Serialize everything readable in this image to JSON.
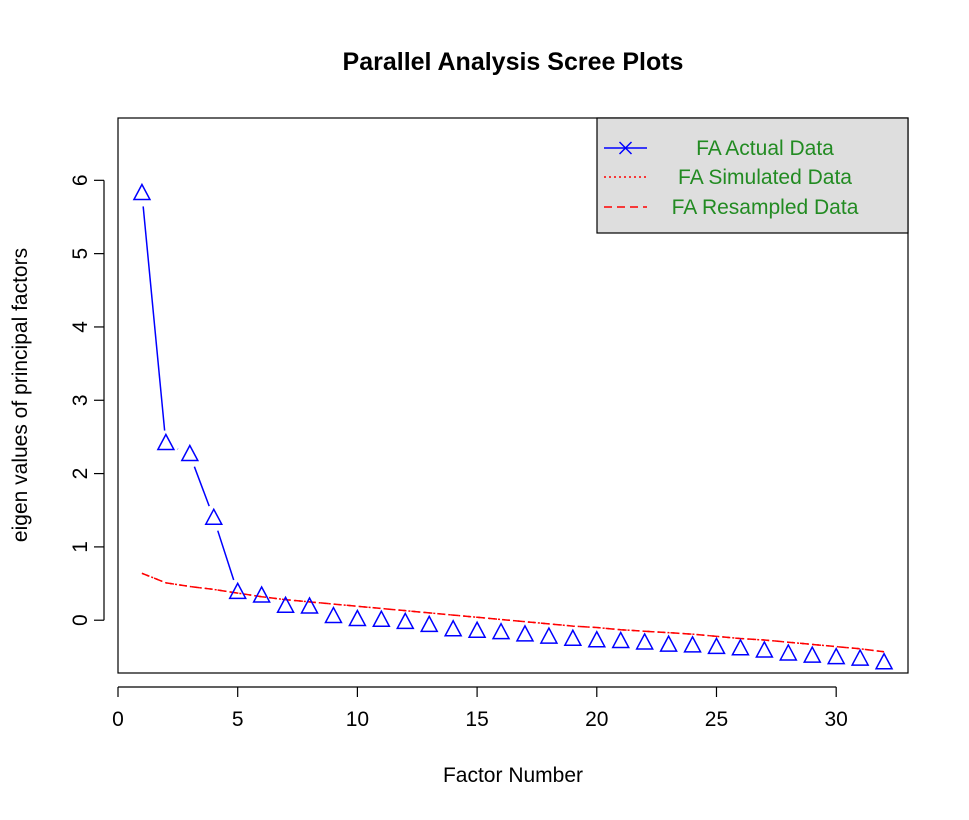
{
  "chart_data": {
    "type": "line",
    "title": "Parallel Analysis Scree Plots",
    "xlabel": "Factor Number",
    "ylabel": "eigen values of principal factors",
    "xlim": [
      0,
      33
    ],
    "ylim": [
      -0.72,
      6.85
    ],
    "xticks": [
      0,
      5,
      10,
      15,
      20,
      25,
      30
    ],
    "yticks": [
      0,
      1,
      2,
      3,
      4,
      5,
      6
    ],
    "legend_position": "top-right",
    "series": [
      {
        "name": "FA  Actual Data",
        "color": "#0000ff",
        "style": "solid-with-triangles",
        "x": [
          1,
          2,
          3,
          4,
          5,
          6,
          7,
          8,
          9,
          10,
          11,
          12,
          13,
          14,
          15,
          16,
          17,
          18,
          19,
          20,
          21,
          22,
          23,
          24,
          25,
          26,
          27,
          28,
          29,
          30,
          31,
          32
        ],
        "values": [
          5.82,
          2.41,
          2.26,
          1.39,
          0.38,
          0.33,
          0.19,
          0.18,
          0.05,
          0.01,
          0.0,
          -0.03,
          -0.07,
          -0.13,
          -0.15,
          -0.17,
          -0.2,
          -0.23,
          -0.26,
          -0.28,
          -0.29,
          -0.31,
          -0.34,
          -0.35,
          -0.37,
          -0.39,
          -0.42,
          -0.46,
          -0.49,
          -0.51,
          -0.53,
          -0.58
        ]
      },
      {
        "name": "FA  Simulated Data",
        "color": "#ff0000",
        "style": "dotted",
        "x": [
          1,
          2,
          3,
          4,
          5,
          6,
          7,
          8,
          9,
          10,
          11,
          12,
          13,
          14,
          15,
          16,
          17,
          18,
          19,
          20,
          21,
          22,
          23,
          24,
          25,
          26,
          27,
          28,
          29,
          30,
          31,
          32
        ],
        "values": [
          0.64,
          0.51,
          0.46,
          0.42,
          0.37,
          0.32,
          0.28,
          0.25,
          0.22,
          0.19,
          0.16,
          0.13,
          0.1,
          0.07,
          0.04,
          0.01,
          -0.02,
          -0.05,
          -0.08,
          -0.1,
          -0.13,
          -0.15,
          -0.17,
          -0.19,
          -0.22,
          -0.25,
          -0.27,
          -0.3,
          -0.33,
          -0.36,
          -0.39,
          -0.43
        ]
      },
      {
        "name": "FA  Resampled Data",
        "color": "#ff0000",
        "style": "dashed",
        "x": [
          1,
          2,
          3,
          4,
          5,
          6,
          7,
          8,
          9,
          10,
          11,
          12,
          13,
          14,
          15,
          16,
          17,
          18,
          19,
          20,
          21,
          22,
          23,
          24,
          25,
          26,
          27,
          28,
          29,
          30,
          31,
          32
        ],
        "values": [
          0.64,
          0.51,
          0.46,
          0.42,
          0.37,
          0.32,
          0.28,
          0.25,
          0.22,
          0.19,
          0.16,
          0.13,
          0.1,
          0.07,
          0.04,
          0.01,
          -0.02,
          -0.05,
          -0.08,
          -0.1,
          -0.13,
          -0.15,
          -0.17,
          -0.19,
          -0.22,
          -0.25,
          -0.27,
          -0.3,
          -0.33,
          -0.36,
          -0.39,
          -0.43
        ]
      }
    ],
    "legend_text_color": "#228b22",
    "legend_bg_color": "#dedede"
  }
}
